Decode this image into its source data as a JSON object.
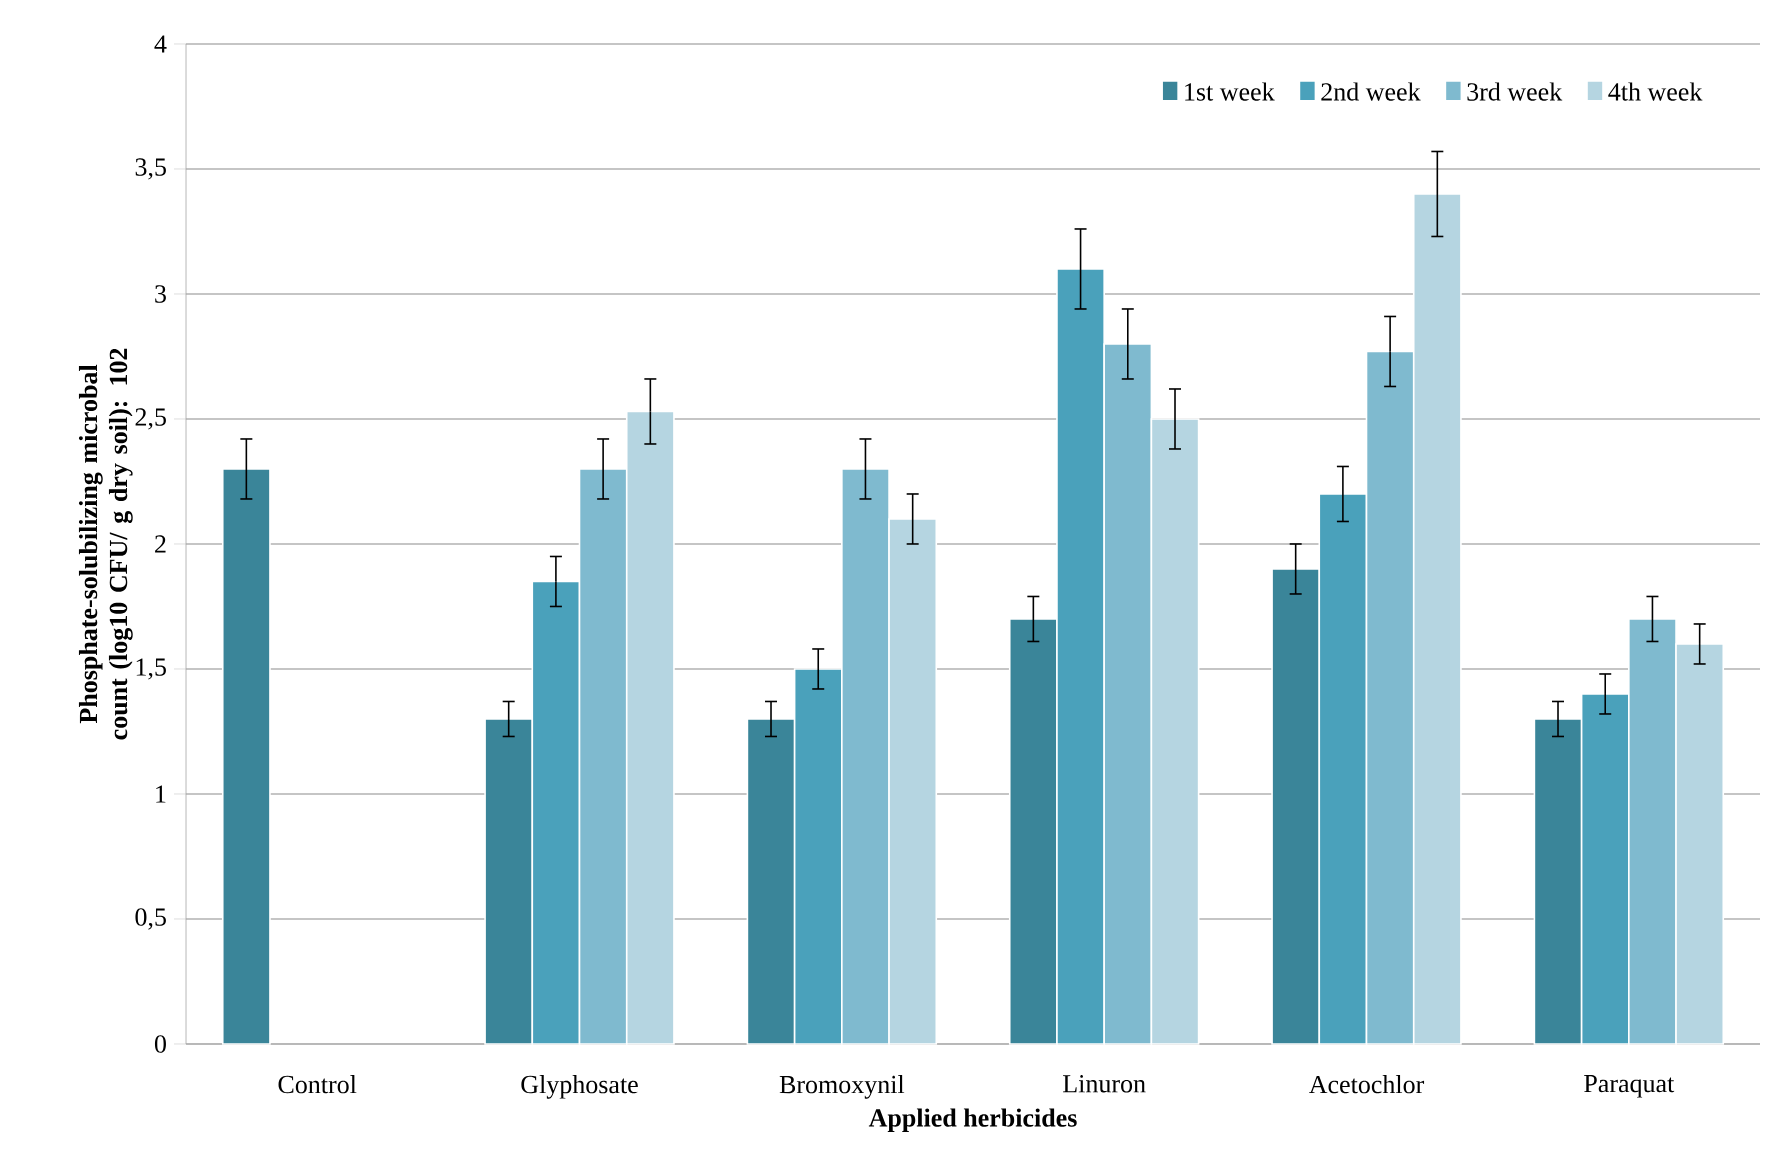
{
  "chart_data": {
    "type": "bar",
    "xlabel": "Applied herbicides",
    "ylabel": "Phosphate-solubilizing microbal  count (log10 CFU/ g dry soil): 102",
    "categories": [
      "Control",
      "Glyphosate",
      "Bromoxynil",
      "Linuron",
      "Acetochlor",
      "Paraquat"
    ],
    "series": [
      {
        "name": "1st week",
        "color": "#3a8599",
        "values": [
          2.3,
          1.3,
          1.3,
          1.7,
          1.9,
          1.3
        ],
        "errors": [
          0.12,
          0.07,
          0.07,
          0.09,
          0.1,
          0.07
        ]
      },
      {
        "name": "2nd week",
        "color": "#4aa1bb",
        "values": [
          null,
          1.85,
          1.5,
          3.1,
          2.2,
          1.4
        ],
        "errors": [
          null,
          0.1,
          0.08,
          0.16,
          0.11,
          0.08
        ]
      },
      {
        "name": "3rd week",
        "color": "#7fbacf",
        "values": [
          null,
          2.3,
          2.3,
          2.8,
          2.77,
          1.7
        ],
        "errors": [
          null,
          0.12,
          0.12,
          0.14,
          0.14,
          0.09
        ]
      },
      {
        "name": "4th week",
        "color": "#b5d5e1",
        "values": [
          null,
          2.53,
          2.1,
          2.5,
          3.4,
          1.6
        ],
        "errors": [
          null,
          0.13,
          0.1,
          0.12,
          0.17,
          0.08
        ]
      }
    ],
    "ylim": [
      0,
      4
    ],
    "yticks": [
      0,
      {
        "value": 0.5,
        "label": "0,5"
      },
      1,
      {
        "value": 1.5,
        "label": "1,5"
      },
      2,
      {
        "value": 2.5,
        "label": "2,5"
      },
      3,
      {
        "value": 3.5,
        "label": "3,5"
      },
      4
    ],
    "grid": "y",
    "legend": "top right"
  }
}
